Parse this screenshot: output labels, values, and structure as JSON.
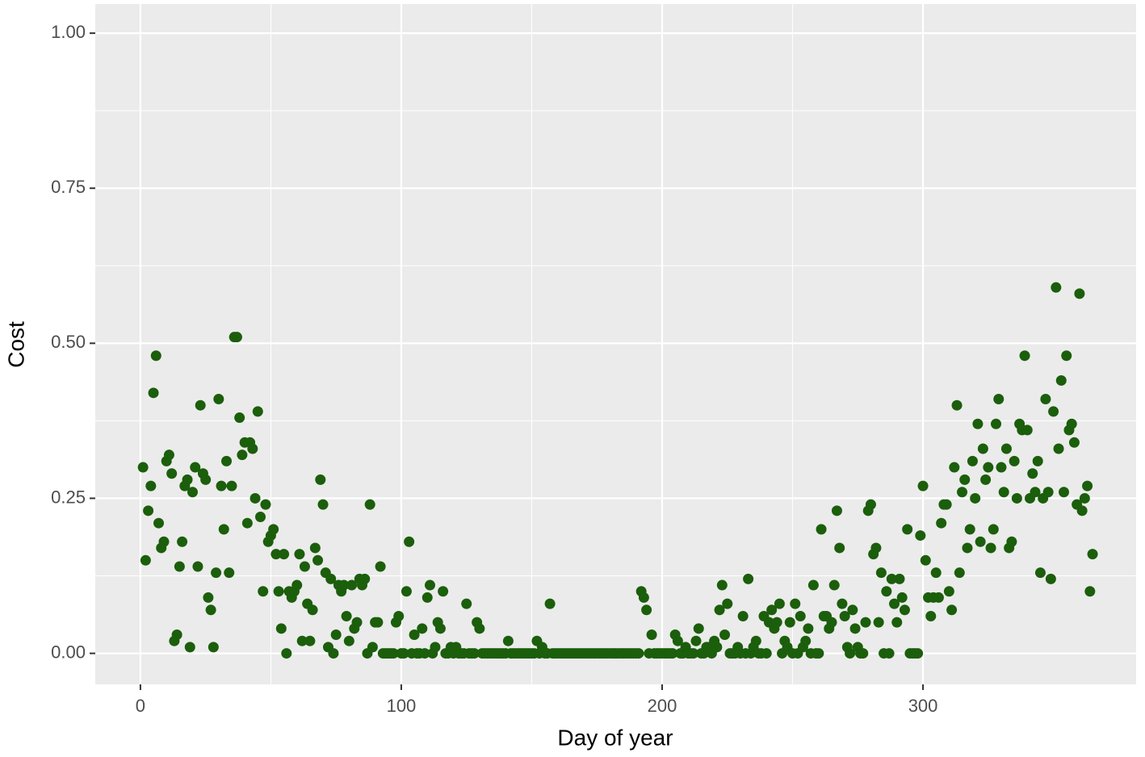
{
  "chart_data": {
    "type": "scatter",
    "x_label": "Day of year",
    "y_label": "Cost",
    "color": "#1b5e0b",
    "background": "#ebebeb",
    "grid": true,
    "xlim": [
      -17.3,
      381.7
    ],
    "xticks": [
      0,
      100,
      200,
      300
    ],
    "ylim": [
      -0.05,
      1.047
    ],
    "yticks": [
      {
        "value": 0,
        "label": "0.00"
      },
      {
        "value": 0.25,
        "label": "0.25"
      },
      {
        "value": 0.5,
        "label": "0.50"
      },
      {
        "value": 0.75,
        "label": "0.75"
      },
      {
        "value": 1,
        "label": "1.00"
      }
    ],
    "x": [
      1,
      2,
      3,
      4,
      5,
      6,
      7,
      8,
      9,
      10,
      11,
      12,
      13,
      14,
      15,
      16,
      17,
      18,
      19,
      20,
      21,
      22,
      23,
      24,
      25,
      26,
      27,
      28,
      29,
      30,
      31,
      32,
      33,
      34,
      35,
      36,
      37,
      38,
      39,
      40,
      41,
      42,
      43,
      44,
      45,
      46,
      47,
      48,
      49,
      50,
      51,
      52,
      53,
      54,
      55,
      56,
      57,
      58,
      59,
      60,
      61,
      62,
      63,
      64,
      65,
      66,
      67,
      68,
      69,
      70,
      71,
      72,
      73,
      74,
      75,
      76,
      77,
      78,
      79,
      80,
      81,
      82,
      83,
      84,
      85,
      86,
      87,
      88,
      89,
      90,
      91,
      92,
      93,
      94,
      95,
      96,
      97,
      98,
      99,
      100,
      101,
      102,
      103,
      104,
      105,
      106,
      107,
      108,
      109,
      110,
      111,
      112,
      113,
      114,
      115,
      116,
      117,
      118,
      119,
      120,
      121,
      122,
      123,
      124,
      125,
      126,
      127,
      128,
      129,
      130,
      131,
      132,
      133,
      134,
      135,
      136,
      137,
      138,
      139,
      140,
      141,
      142,
      143,
      144,
      145,
      146,
      147,
      148,
      149,
      150,
      151,
      152,
      153,
      154,
      155,
      156,
      157,
      158,
      159,
      160,
      161,
      162,
      163,
      164,
      165,
      166,
      167,
      168,
      169,
      170,
      171,
      172,
      173,
      174,
      175,
      176,
      177,
      178,
      179,
      180,
      181,
      182,
      183,
      184,
      185,
      186,
      187,
      188,
      189,
      190,
      191,
      192,
      193,
      194,
      195,
      196,
      197,
      198,
      199,
      200,
      201,
      202,
      203,
      204,
      205,
      206,
      207,
      208,
      209,
      210,
      211,
      212,
      213,
      214,
      215,
      216,
      217,
      218,
      219,
      220,
      221,
      222,
      223,
      224,
      225,
      226,
      227,
      228,
      229,
      230,
      231,
      232,
      233,
      234,
      235,
      236,
      237,
      238,
      239,
      240,
      241,
      242,
      243,
      244,
      245,
      246,
      247,
      248,
      249,
      250,
      251,
      252,
      253,
      254,
      255,
      256,
      257,
      258,
      259,
      260,
      261,
      262,
      263,
      264,
      265,
      266,
      267,
      268,
      269,
      270,
      271,
      272,
      273,
      274,
      275,
      276,
      277,
      278,
      279,
      280,
      281,
      282,
      283,
      284,
      285,
      286,
      287,
      288,
      289,
      290,
      291,
      292,
      293,
      294,
      295,
      296,
      297,
      298,
      299,
      300,
      301,
      302,
      303,
      304,
      305,
      306,
      307,
      308,
      309,
      310,
      311,
      312,
      313,
      314,
      315,
      316,
      317,
      318,
      319,
      320,
      321,
      322,
      323,
      324,
      325,
      326,
      327,
      328,
      329,
      330,
      331,
      332,
      333,
      334,
      335,
      336,
      337,
      338,
      339,
      340,
      341,
      342,
      343,
      344,
      345,
      346,
      347,
      348,
      349,
      350,
      351,
      352,
      353,
      354,
      355,
      356,
      357,
      358,
      359,
      360,
      361,
      362,
      363,
      364,
      365
    ],
    "values": [
      0.3,
      0.15,
      0.23,
      0.27,
      0.42,
      0.48,
      0.21,
      0.17,
      0.18,
      0.31,
      0.32,
      0.29,
      0.02,
      0.03,
      0.14,
      0.18,
      0.27,
      0.28,
      0.01,
      0.26,
      0.3,
      0.14,
      0.4,
      0.29,
      0.28,
      0.09,
      0.07,
      0.01,
      0.13,
      0.41,
      0.27,
      0.2,
      0.31,
      0.13,
      0.27,
      0.51,
      0.51,
      0.38,
      0.32,
      0.34,
      0.21,
      0.34,
      0.33,
      0.25,
      0.39,
      0.22,
      0.1,
      0.24,
      0.18,
      0.19,
      0.2,
      0.16,
      0.1,
      0.04,
      0.16,
      0,
      0.1,
      0.09,
      0.1,
      0.11,
      0.16,
      0.02,
      0.14,
      0.08,
      0.02,
      0.07,
      0.17,
      0.15,
      0.28,
      0.24,
      0.13,
      0.01,
      0.12,
      0,
      0.03,
      0.11,
      0.1,
      0.11,
      0.06,
      0.02,
      0.11,
      0.04,
      0.05,
      0.12,
      0.11,
      0.12,
      0,
      0.24,
      0.01,
      0.05,
      0.05,
      0.14,
      0,
      0,
      0,
      0,
      0,
      0.05,
      0.06,
      0,
      0,
      0.1,
      0.18,
      0,
      0.03,
      0,
      0,
      0.04,
      0,
      0.09,
      0.11,
      0,
      0.01,
      0.05,
      0.04,
      0.1,
      0,
      0,
      0.01,
      0,
      0.01,
      0,
      0,
      0,
      0.08,
      0,
      0,
      0,
      0.05,
      0.04,
      0,
      0,
      0,
      0,
      0,
      0,
      0,
      0,
      0,
      0,
      0.02,
      0,
      0,
      0,
      0,
      0,
      0,
      0,
      0,
      0,
      0,
      0.02,
      0,
      0.01,
      0,
      0,
      0.08,
      0,
      0,
      0,
      0,
      0,
      0,
      0,
      0,
      0,
      0,
      0,
      0,
      0,
      0,
      0,
      0,
      0,
      0,
      0,
      0,
      0,
      0,
      0,
      0,
      0,
      0,
      0,
      0,
      0,
      0,
      0,
      0,
      0,
      0,
      0.1,
      0.09,
      0.07,
      0,
      0.03,
      0,
      0,
      0,
      0,
      0,
      0,
      0,
      0,
      0.03,
      0.02,
      0,
      0,
      0.01,
      0,
      0,
      0,
      0.02,
      0.04,
      0,
      0,
      0.01,
      0.01,
      0,
      0.02,
      0.01,
      0.07,
      0.11,
      0.03,
      0.08,
      0,
      0,
      0,
      0.01,
      0,
      0.06,
      0,
      0.12,
      0,
      0.01,
      0.02,
      0,
      0,
      0.06,
      0,
      0.05,
      0.07,
      0.04,
      0.05,
      0.08,
      0,
      0.02,
      0.01,
      0.05,
      0,
      0.08,
      0,
      0.06,
      0.01,
      0.02,
      0.04,
      0,
      0.11,
      0,
      0,
      0.2,
      0.06,
      0.06,
      0.04,
      0.05,
      0.11,
      0.23,
      0.17,
      0.08,
      0.06,
      0.01,
      0,
      0.07,
      0.04,
      0.01,
      0,
      0,
      0.05,
      0.23,
      0.24,
      0.16,
      0.17,
      0.05,
      0.13,
      0,
      0.1,
      0,
      0.12,
      0.08,
      0.05,
      0.12,
      0.09,
      0.07,
      0.2,
      0,
      0,
      0,
      0,
      0.19,
      0.27,
      0.15,
      0.09,
      0.06,
      0.09,
      0.13,
      0.09,
      0.21,
      0.24,
      0.24,
      0.1,
      0.07,
      0.3,
      0.4,
      0.13,
      0.26,
      0.28,
      0.17,
      0.2,
      0.31,
      0.25,
      0.37,
      0.18,
      0.33,
      0.28,
      0.3,
      0.17,
      0.2,
      0.37,
      0.41,
      0.3,
      0.26,
      0.33,
      0.17,
      0.18,
      0.31,
      0.25,
      0.37,
      0.36,
      0.48,
      0.36,
      0.25,
      0.29,
      0.26,
      0.31,
      0.13,
      0.25,
      0.41,
      0.26,
      0.12,
      0.39,
      0.59,
      0.33,
      0.44,
      0.26,
      0.48,
      0.36,
      0.37,
      0.34,
      0.24,
      0.58,
      0.23,
      0.25,
      0.27,
      0.1,
      0.16
    ]
  }
}
